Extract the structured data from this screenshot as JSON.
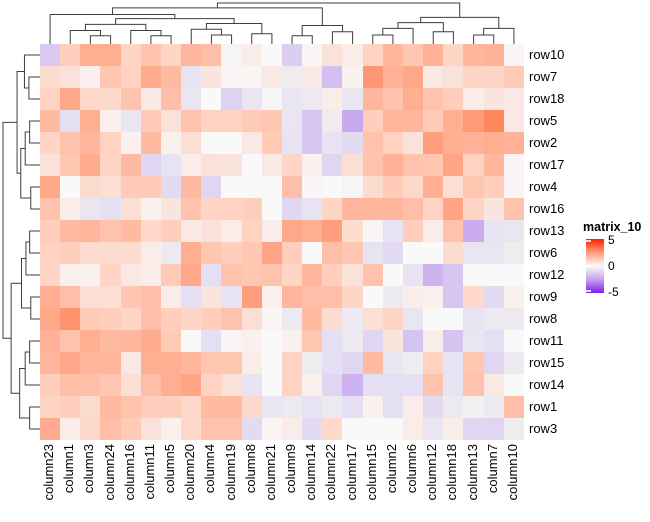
{
  "chart_data": {
    "type": "heatmap",
    "title": "",
    "columns": [
      "column23",
      "column1",
      "column3",
      "column24",
      "column16",
      "column11",
      "column5",
      "column20",
      "column4",
      "column19",
      "column8",
      "column21",
      "column9",
      "column14",
      "column22",
      "column17",
      "column15",
      "column2",
      "column6",
      "column12",
      "column18",
      "column13",
      "column7",
      "column10"
    ],
    "rows": [
      "row10",
      "row7",
      "row18",
      "row5",
      "row2",
      "row17",
      "row4",
      "row16",
      "row13",
      "row6",
      "row12",
      "row9",
      "row8",
      "row11",
      "row15",
      "row14",
      "row1",
      "row3"
    ],
    "values": [
      [
        -1.2,
        1.2,
        2.0,
        2.0,
        1.0,
        1.5,
        1.0,
        1.8,
        1.6,
        -0.1,
        0.3,
        0.0,
        -1.1,
        0.1,
        0.6,
        0.3,
        1.1,
        1.8,
        1.4,
        1.9,
        1.0,
        1.8,
        1.9,
        0.1
      ],
      [
        0.8,
        0.6,
        0.2,
        1.4,
        1.1,
        2.1,
        1.7,
        -0.6,
        0.5,
        0.1,
        0.1,
        0.4,
        -0.3,
        0.4,
        -1.5,
        0.2,
        2.7,
        1.9,
        2.2,
        0.4,
        0.6,
        1.0,
        1.0,
        1.3
      ],
      [
        1.1,
        2.2,
        0.9,
        0.9,
        1.5,
        0.4,
        1.6,
        -0.5,
        0.0,
        -1.0,
        -0.5,
        -0.1,
        -0.5,
        -0.4,
        0.3,
        -0.5,
        1.8,
        1.5,
        2.0,
        1.5,
        1.2,
        0.3,
        0.5,
        0.4
      ],
      [
        1.7,
        -0.7,
        2.0,
        0.2,
        -0.5,
        1.3,
        0.6,
        1.5,
        1.1,
        1.1,
        1.3,
        1.4,
        -0.5,
        -1.3,
        -0.3,
        -2.3,
        1.2,
        1.8,
        1.8,
        1.3,
        2.0,
        2.6,
        3.2,
        0.4
      ],
      [
        1.0,
        1.5,
        1.8,
        1.1,
        0.2,
        1.7,
        0.2,
        0.7,
        0.0,
        0.0,
        0.4,
        1.3,
        -0.6,
        -1.3,
        -0.6,
        -0.8,
        1.5,
        1.1,
        0.6,
        2.5,
        2.0,
        1.9,
        2.0,
        1.9
      ],
      [
        0.6,
        1.4,
        2.1,
        1.0,
        1.7,
        -0.9,
        -0.6,
        0.3,
        0.6,
        0.5,
        0.0,
        0.4,
        1.0,
        0.2,
        -0.9,
        0.7,
        1.5,
        1.9,
        1.5,
        1.4,
        2.3,
        1.1,
        1.8,
        0.1
      ],
      [
        2.2,
        0.0,
        0.8,
        0.7,
        1.3,
        1.3,
        -0.8,
        1.7,
        -0.9,
        0.0,
        0.0,
        0.0,
        1.6,
        0.1,
        0.0,
        -0.1,
        0.8,
        1.3,
        0.9,
        2.0,
        0.7,
        1.4,
        1.2,
        0.1
      ],
      [
        1.5,
        0.3,
        -0.5,
        -0.7,
        0.7,
        0.2,
        0.5,
        1.5,
        1.0,
        1.1,
        1.2,
        0.0,
        -0.9,
        -0.6,
        1.0,
        1.8,
        1.8,
        1.8,
        1.6,
        1.1,
        2.3,
        1.0,
        0.5,
        1.5
      ],
      [
        1.2,
        1.7,
        1.8,
        1.5,
        1.7,
        0.9,
        1.2,
        0.4,
        0.6,
        0.3,
        1.1,
        0.3,
        2.2,
        2.0,
        2.5,
        0.8,
        0.1,
        -0.6,
        1.2,
        0.3,
        1.5,
        -2.1,
        -0.6,
        -0.5
      ],
      [
        1.1,
        1.2,
        0.8,
        0.8,
        0.8,
        0.3,
        -0.4,
        2.0,
        1.4,
        1.2,
        1.4,
        2.3,
        1.2,
        0.0,
        1.6,
        1.4,
        -0.6,
        -0.8,
        0.0,
        0.0,
        0.8,
        -0.5,
        -0.5,
        -0.3
      ],
      [
        1.0,
        0.2,
        0.2,
        1.0,
        0.4,
        0.3,
        1.3,
        2.2,
        -0.7,
        1.5,
        1.4,
        1.5,
        1.0,
        1.8,
        1.2,
        0.6,
        1.5,
        0.0,
        -0.6,
        -1.9,
        -1.3,
        0.0,
        0.0,
        0.0
      ],
      [
        2.0,
        1.6,
        0.7,
        0.7,
        1.4,
        1.6,
        0.3,
        -0.7,
        0.5,
        -0.6,
        2.5,
        0.2,
        1.8,
        1.6,
        1.6,
        1.0,
        0.0,
        -0.4,
        0.3,
        0.2,
        -1.3,
        0.9,
        -0.8,
        0.2
      ],
      [
        2.2,
        2.8,
        1.3,
        1.2,
        1.0,
        1.6,
        1.2,
        1.0,
        1.2,
        1.5,
        0.7,
        0.1,
        -0.4,
        1.7,
        0.8,
        -0.4,
        0.7,
        1.0,
        -0.5,
        0.0,
        0.0,
        -0.6,
        -0.4,
        -0.4
      ],
      [
        1.9,
        1.5,
        2.0,
        1.7,
        1.8,
        2.1,
        1.3,
        0.0,
        -0.7,
        0.1,
        0.2,
        0.0,
        0.2,
        1.4,
        -0.7,
        -0.4,
        -0.9,
        0.5,
        -1.4,
        0.3,
        -1.4,
        -0.5,
        -0.7,
        0.0
      ],
      [
        1.8,
        2.2,
        1.8,
        1.8,
        0.4,
        2.0,
        2.0,
        1.8,
        1.4,
        1.4,
        0.3,
        0.0,
        1.1,
        -0.3,
        -0.7,
        -0.9,
        1.7,
        -0.5,
        -0.3,
        1.1,
        -0.6,
        1.4,
        -0.9,
        -0.4
      ],
      [
        1.2,
        1.6,
        1.6,
        1.4,
        0.7,
        1.6,
        2.0,
        2.3,
        1.1,
        0.6,
        -0.6,
        0.0,
        1.1,
        0.2,
        -0.9,
        -1.9,
        -0.7,
        -0.7,
        -0.7,
        1.5,
        -0.6,
        1.5,
        0.4,
        0.0
      ],
      [
        1.0,
        1.2,
        0.8,
        1.7,
        1.5,
        1.2,
        1.2,
        0.9,
        1.7,
        1.7,
        0.9,
        -0.5,
        -0.4,
        -0.6,
        -0.4,
        -0.7,
        0.2,
        -0.7,
        0.3,
        -0.8,
        -0.4,
        -0.2,
        -0.4,
        1.6
      ],
      [
        2.1,
        0.3,
        0.9,
        1.6,
        1.3,
        0.6,
        0.2,
        0.9,
        1.5,
        1.5,
        -0.8,
        0.1,
        0.3,
        -0.8,
        0.9,
        0.0,
        0.0,
        0.0,
        0.3,
        -0.5,
        0.3,
        -0.9,
        -0.9,
        -0.3
      ]
    ],
    "value_range": [
      -5,
      5
    ],
    "legend": {
      "title": "matrix_10",
      "tick_labels": [
        "5",
        "0",
        "-5"
      ],
      "tick_values": [
        5,
        0,
        -5
      ]
    },
    "colormap": {
      "anchors": [
        [
          -5.0,
          "#7E22E0"
        ],
        [
          -2.5,
          "#C5A3ED"
        ],
        [
          -2.0,
          "#CCB0EF"
        ],
        [
          -1.5,
          "#D3BFF0"
        ],
        [
          -1.0,
          "#DDD2F1"
        ],
        [
          -0.6,
          "#E7E3F3"
        ],
        [
          -0.3,
          "#EEECEF"
        ],
        [
          0.0,
          "#FAF9F9"
        ],
        [
          0.5,
          "#F9E4DE"
        ],
        [
          1.0,
          "#FFD6C6"
        ],
        [
          1.5,
          "#FFC2AC"
        ],
        [
          2.0,
          "#FFAE92"
        ],
        [
          2.5,
          "#FF9D7C"
        ],
        [
          3.5,
          "#FF7C4D"
        ],
        [
          5.0,
          "#FF1F00"
        ]
      ]
    },
    "column_dendrogram": {
      "h": 1.0,
      "c": [
        {
          "h": 0.88,
          "c": [
            {
              "h": 0.72,
              "c": [
                0,
                {
                  "h": 0.62,
                  "c": [
                    {
                      "h": 0.48,
                      "c": [
                        {
                          "h": 0.33,
                          "c": [
                            1,
                            {
                              "h": 0.2,
                              "c": [
                                2,
                                3
                              ]
                            }
                          ]
                        },
                        {
                          "h": 0.33,
                          "c": [
                            4,
                            {
                              "h": 0.2,
                              "c": [
                                5,
                                6
                              ]
                            }
                          ]
                        }
                      ]
                    },
                    {
                      "h": 0.5,
                      "c": [
                        {
                          "h": 0.36,
                          "c": [
                            7,
                            {
                              "h": 0.22,
                              "c": [
                                8,
                                9
                              ]
                            }
                          ]
                        },
                        {
                          "h": 0.25,
                          "c": [
                            10,
                            11
                          ]
                        }
                      ]
                    }
                  ]
                }
              ]
            },
            {
              "h": 0.45,
              "c": [
                {
                  "h": 0.2,
                  "c": [
                    12,
                    13
                  ]
                },
                {
                  "h": 0.3,
                  "c": [
                    14,
                    15
                  ]
                }
              ]
            }
          ]
        },
        {
          "h": 0.65,
          "c": [
            {
              "h": 0.52,
              "c": [
                {
                  "h": 0.38,
                  "c": [
                    {
                      "h": 0.22,
                      "c": [
                        16,
                        17
                      ]
                    },
                    18
                  ]
                },
                {
                  "h": 0.3,
                  "c": [
                    19,
                    20
                  ]
                }
              ]
            },
            {
              "h": 0.38,
              "c": [
                {
                  "h": 0.22,
                  "c": [
                    21,
                    22
                  ]
                },
                23
              ]
            }
          ]
        }
      ]
    },
    "row_dendrogram": {
      "h": 1.0,
      "c": [
        {
          "h": 0.62,
          "c": [
            {
              "h": 0.42,
              "c": [
                0,
                {
                  "h": 0.3,
                  "c": [
                    1,
                    2
                  ]
                }
              ]
            },
            {
              "h": 0.52,
              "c": [
                {
                  "h": 0.4,
                  "c": [
                    {
                      "h": 0.28,
                      "c": [
                        3,
                        4
                      ]
                    },
                    5
                  ]
                },
                {
                  "h": 0.25,
                  "c": [
                    6,
                    7
                  ]
                }
              ]
            }
          ]
        },
        {
          "h": 0.78,
          "c": [
            {
              "h": 0.5,
              "c": [
                {
                  "h": 0.38,
                  "c": [
                    {
                      "h": 0.28,
                      "c": [
                        8,
                        9
                      ]
                    },
                    10
                  ]
                },
                {
                  "h": 0.25,
                  "c": [
                    11,
                    12
                  ]
                }
              ]
            },
            {
              "h": 0.55,
              "c": [
                {
                  "h": 0.4,
                  "c": [
                    {
                      "h": 0.28,
                      "c": [
                        13,
                        14
                      ]
                    },
                    15
                  ]
                },
                {
                  "h": 0.28,
                  "c": [
                    16,
                    17
                  ]
                }
              ]
            }
          ]
        }
      ]
    }
  }
}
